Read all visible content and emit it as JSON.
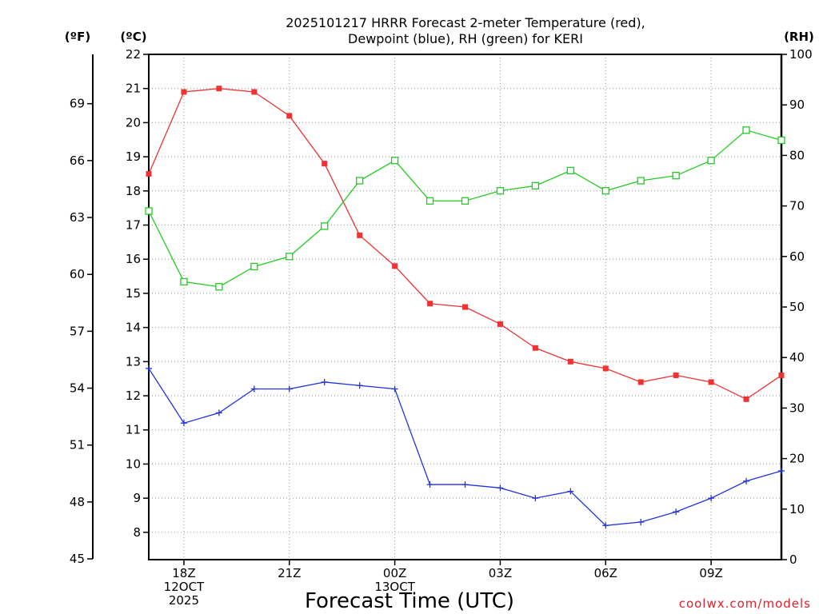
{
  "chart_data": {
    "type": "line",
    "title": [
      "2025101217 HRRR Forecast 2-meter Temperature (red),",
      "Dewpoint (blue), RH (green) for KERI"
    ],
    "xlabel": "Forecast Time (UTC)",
    "credit": "coolwx.com/models",
    "units": {
      "fahrenheit": "(ºF)",
      "celsius": "(ºC)",
      "rh": "(RH)"
    },
    "x_ticks": [
      {
        "hour": 1,
        "lines": [
          "18Z",
          "12OCT",
          "2025"
        ]
      },
      {
        "hour": 4,
        "lines": [
          "21Z"
        ]
      },
      {
        "hour": 7,
        "lines": [
          "00Z",
          "13OCT"
        ]
      },
      {
        "hour": 10,
        "lines": [
          "03Z"
        ]
      },
      {
        "hour": 13,
        "lines": [
          "06Z"
        ]
      },
      {
        "hour": 16,
        "lines": [
          "09Z"
        ]
      }
    ],
    "x": [
      0,
      1,
      2,
      3,
      4,
      5,
      6,
      7,
      8,
      9,
      10,
      11,
      12,
      13,
      14,
      15,
      16,
      17,
      18
    ],
    "xlim": [
      0,
      18
    ],
    "celsius_axis": {
      "ylim": [
        7.2,
        22
      ],
      "ticks": [
        8,
        9,
        10,
        11,
        12,
        13,
        14,
        15,
        16,
        17,
        18,
        19,
        20,
        21,
        22
      ]
    },
    "fahrenheit_axis": {
      "ticks": [
        45,
        48,
        51,
        54,
        57,
        60,
        63,
        66,
        69
      ]
    },
    "rh_axis": {
      "ylim": [
        0,
        100
      ],
      "ticks": [
        0,
        10,
        20,
        30,
        40,
        50,
        60,
        70,
        80,
        90,
        100
      ]
    },
    "series": [
      {
        "name": "Temperature",
        "axis": "celsius",
        "color": "#ee3333",
        "marker": "filled-square",
        "values": [
          18.5,
          20.9,
          21.0,
          20.9,
          20.2,
          18.8,
          16.7,
          15.8,
          14.7,
          14.6,
          14.1,
          13.4,
          13.0,
          12.8,
          12.4,
          12.6,
          12.4,
          11.9,
          12.6
        ]
      },
      {
        "name": "Dewpoint",
        "axis": "celsius",
        "color": "#2233dd",
        "marker": "plus",
        "values": [
          12.8,
          11.2,
          11.5,
          12.2,
          12.2,
          12.4,
          12.3,
          12.2,
          9.4,
          9.4,
          9.3,
          9.0,
          9.2,
          8.2,
          8.3,
          8.6,
          9.0,
          9.5,
          9.8
        ]
      },
      {
        "name": "RH",
        "axis": "rh",
        "color": "#22cc22",
        "marker": "open-square",
        "values": [
          69,
          55,
          54,
          58,
          60,
          66,
          75,
          79,
          71,
          71,
          73,
          74,
          77,
          73,
          75,
          76,
          79,
          85,
          83
        ]
      }
    ]
  }
}
